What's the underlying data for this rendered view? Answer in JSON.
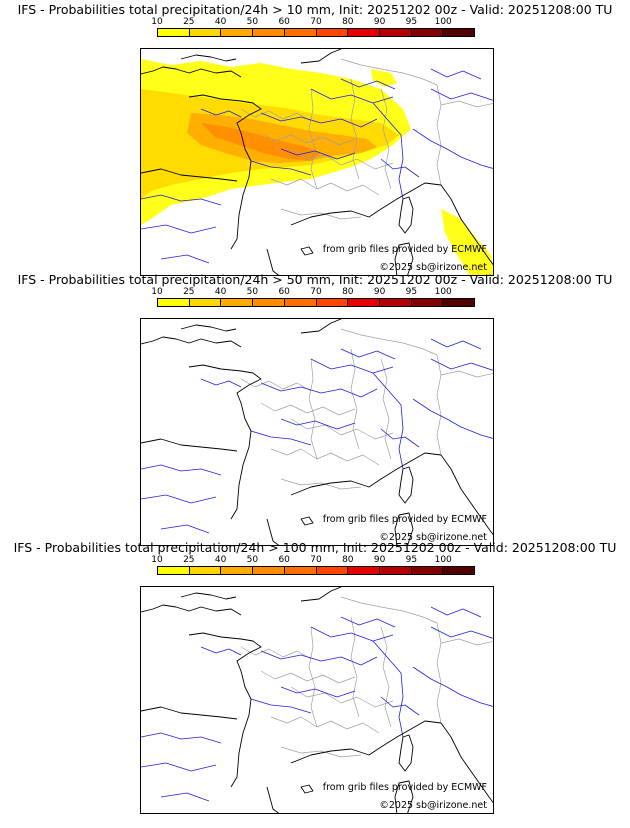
{
  "colorbar": {
    "ticks": [
      "10",
      "25",
      "40",
      "50",
      "60",
      "70",
      "80",
      "90",
      "95",
      "100"
    ],
    "colors": [
      "#ffff00",
      "#ffd700",
      "#ffaa00",
      "#ff8c00",
      "#ff6e00",
      "#ff4500",
      "#e60000",
      "#b40000",
      "#820000",
      "#500000"
    ]
  },
  "map_colors": {
    "coast": "#000000",
    "river": "#2020e0",
    "border": "#a0a0a0"
  },
  "panels": [
    {
      "title": "IFS - Probabilities total precipitation/24h > 10 mm, Init: 20251202 00z - Valid: 20251208:00 TU",
      "credit1": "from grib files provided by ECMWF",
      "credit2": "©2025 sb@irizone.net"
    },
    {
      "title": "IFS - Probabilities total precipitation/24h > 50 mm, Init: 20251202 00z - Valid: 20251208:00 TU",
      "credit1": "from grib files provided by ECMWF",
      "credit2": "©2025 sb@irizone.net"
    },
    {
      "title": "IFS - Probabilities total precipitation/24h > 100 mm, Init: 20251202 00z - Valid: 20251208:00 TU",
      "credit1": "from grib files provided by ECMWF",
      "credit2": "©2025 sb@irizone.net"
    }
  ]
}
